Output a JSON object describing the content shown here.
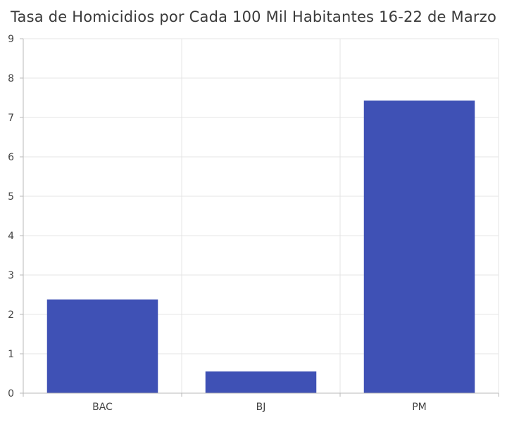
{
  "chart_data": {
    "type": "bar",
    "title": "Tasa de Homicidios por Cada 100 Mil Habitantes 16-22 de Marzo",
    "categories": [
      "BAC",
      "BJ",
      "PM"
    ],
    "values": [
      2.38,
      0.55,
      7.43
    ],
    "xlabel": "",
    "ylabel": "",
    "ylim": [
      0,
      9
    ],
    "yticks": [
      0,
      1,
      2,
      3,
      4,
      5,
      6,
      7,
      8,
      9
    ],
    "grid": true,
    "legend": "none",
    "colors": {
      "bar": "#3f51b5",
      "grid": "#e4e4e4",
      "axis": "#b8b8b8",
      "tick_text": "#444444"
    }
  }
}
